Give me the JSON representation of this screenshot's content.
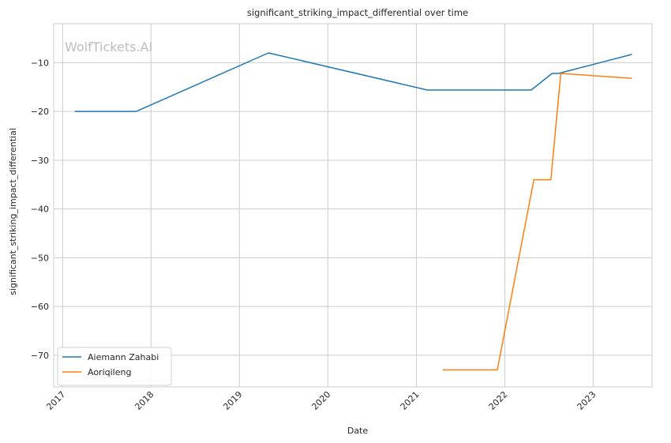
{
  "chart_data": {
    "type": "line",
    "title": "significant_striking_impact_differential over time",
    "xlabel": "Date",
    "ylabel": "significant_striking_impact_differential",
    "watermark": "WolfTickets.AI",
    "x_ticks": [
      "2017",
      "2018",
      "2019",
      "2020",
      "2021",
      "2022",
      "2023"
    ],
    "y_ticks": [
      -10,
      -20,
      -30,
      -40,
      -50,
      -60,
      -70
    ],
    "xlim": [
      "2016-11-25",
      "2023-09-01"
    ],
    "ylim": [
      -76.5,
      -2
    ],
    "grid": true,
    "legend_position": "lower-left",
    "series": [
      {
        "name": "Aiemann Zahabi",
        "color": "#1f77b4",
        "points": [
          [
            "2017-02-20",
            -20
          ],
          [
            "2017-11-01",
            -20
          ],
          [
            "2019-05-01",
            -8
          ],
          [
            "2021-02-15",
            -15.6
          ],
          [
            "2022-04-20",
            -15.6
          ],
          [
            "2022-07-15",
            -12.2
          ],
          [
            "2022-08-10",
            -12.2
          ],
          [
            "2023-06-10",
            -8.3
          ]
        ]
      },
      {
        "name": "Aoriqileng",
        "color": "#ff7f0e",
        "points": [
          [
            "2021-04-20",
            -73
          ],
          [
            "2021-12-01",
            -73
          ],
          [
            "2022-05-01",
            -34
          ],
          [
            "2022-07-10",
            -34
          ],
          [
            "2022-08-20",
            -12.2
          ],
          [
            "2023-06-10",
            -13.2
          ]
        ]
      }
    ]
  }
}
